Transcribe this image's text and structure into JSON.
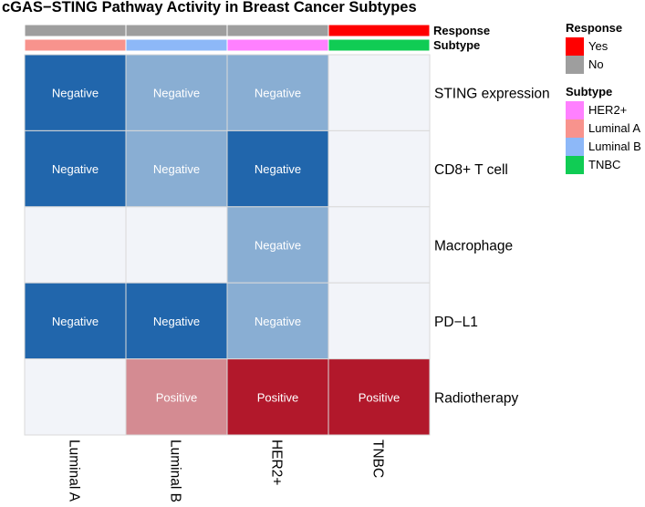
{
  "chart_data": {
    "type": "heatmap",
    "title": "cGAS−STING Pathway Activity in Breast Cancer Subtypes",
    "rows": [
      "STING expression",
      "CD8+ T cell",
      "Macrophage",
      "PD−L1",
      "Radiotherapy"
    ],
    "columns": [
      "Luminal A",
      "Luminal B",
      "HER2+",
      "TNBC"
    ],
    "cells": [
      [
        "Negative",
        "Negative",
        "Negative",
        ""
      ],
      [
        "Negative",
        "Negative",
        "Negative",
        ""
      ],
      [
        "",
        "",
        "Negative",
        ""
      ],
      [
        "Negative",
        "Negative",
        "Negative",
        ""
      ],
      [
        "",
        "Positive",
        "Positive",
        "Positive"
      ]
    ],
    "values": [
      [
        -2,
        -1,
        -1,
        0
      ],
      [
        -2,
        -1,
        -2,
        0
      ],
      [
        0,
        0,
        -1,
        0
      ],
      [
        -2,
        -2,
        -1,
        0
      ],
      [
        0,
        1,
        2,
        2
      ]
    ],
    "value_colors": {
      "-2": "#2166ac",
      "-1": "#89aed3",
      "0": "#f2f4f9",
      "1": "#d48b92",
      "2": "#b2182b"
    },
    "annotations": [
      {
        "name": "Response",
        "values": [
          "No",
          "No",
          "No",
          "Yes"
        ]
      },
      {
        "name": "Subtype",
        "values": [
          "Luminal A",
          "Luminal B",
          "HER2+",
          "TNBC"
        ]
      }
    ],
    "legends": [
      {
        "title": "Response",
        "entries": [
          {
            "label": "Yes",
            "color": "#ff0000"
          },
          {
            "label": "No",
            "color": "#9e9e9e"
          }
        ]
      },
      {
        "title": "Subtype",
        "entries": [
          {
            "label": "HER2+",
            "color": "#ff80ff"
          },
          {
            "label": "Luminal A",
            "color": "#f8938d"
          },
          {
            "label": "Luminal B",
            "color": "#8db8f8"
          },
          {
            "label": "TNBC",
            "color": "#10cc54"
          }
        ]
      }
    ]
  }
}
